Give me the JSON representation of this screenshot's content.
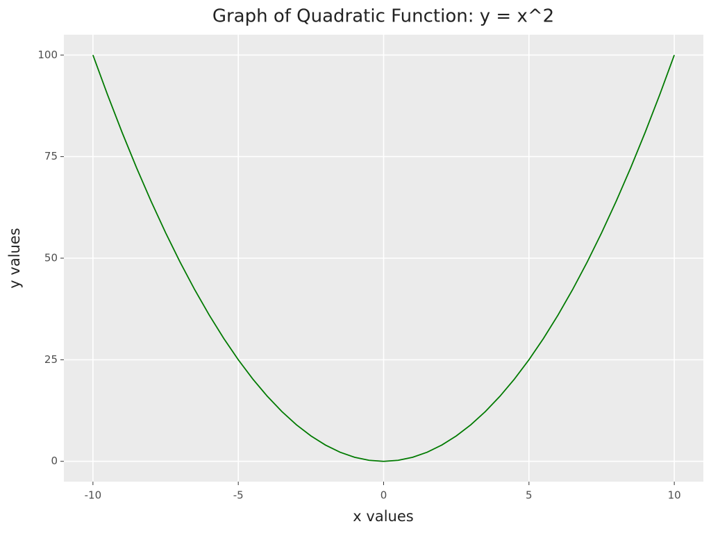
{
  "chart_data": {
    "type": "line",
    "title": "Graph of Quadratic Function: y = x^2",
    "x_label": "x values",
    "y_label": "y values",
    "x": [
      -10,
      -9.5,
      -9,
      -8.5,
      -8,
      -7.5,
      -7,
      -6.5,
      -6,
      -5.5,
      -5,
      -4.5,
      -4,
      -3.5,
      -3,
      -2.5,
      -2,
      -1.5,
      -1,
      -0.5,
      0,
      0.5,
      1,
      1.5,
      2,
      2.5,
      3,
      3.5,
      4,
      4.5,
      5,
      5.5,
      6,
      6.5,
      7,
      7.5,
      8,
      8.5,
      9,
      9.5,
      10
    ],
    "series": [
      {
        "color": "#007a00",
        "values": [
          100,
          90.25,
          81,
          72.25,
          64,
          56.25,
          49,
          42.25,
          36,
          30.25,
          25,
          20.25,
          16,
          12.25,
          9,
          6.25,
          4,
          2.25,
          1,
          0.25,
          0,
          0.25,
          1,
          2.25,
          4,
          6.25,
          9,
          12.25,
          16,
          20.25,
          25,
          30.25,
          36,
          42.25,
          49,
          56.25,
          64,
          72.25,
          81,
          90.25,
          100
        ]
      }
    ],
    "xlim": [
      -11,
      11
    ],
    "ylim": [
      -5,
      105
    ],
    "xticks": [
      -10,
      -5,
      0,
      5,
      10
    ],
    "yticks": [
      0,
      25,
      50,
      75,
      100
    ],
    "grid": true
  }
}
